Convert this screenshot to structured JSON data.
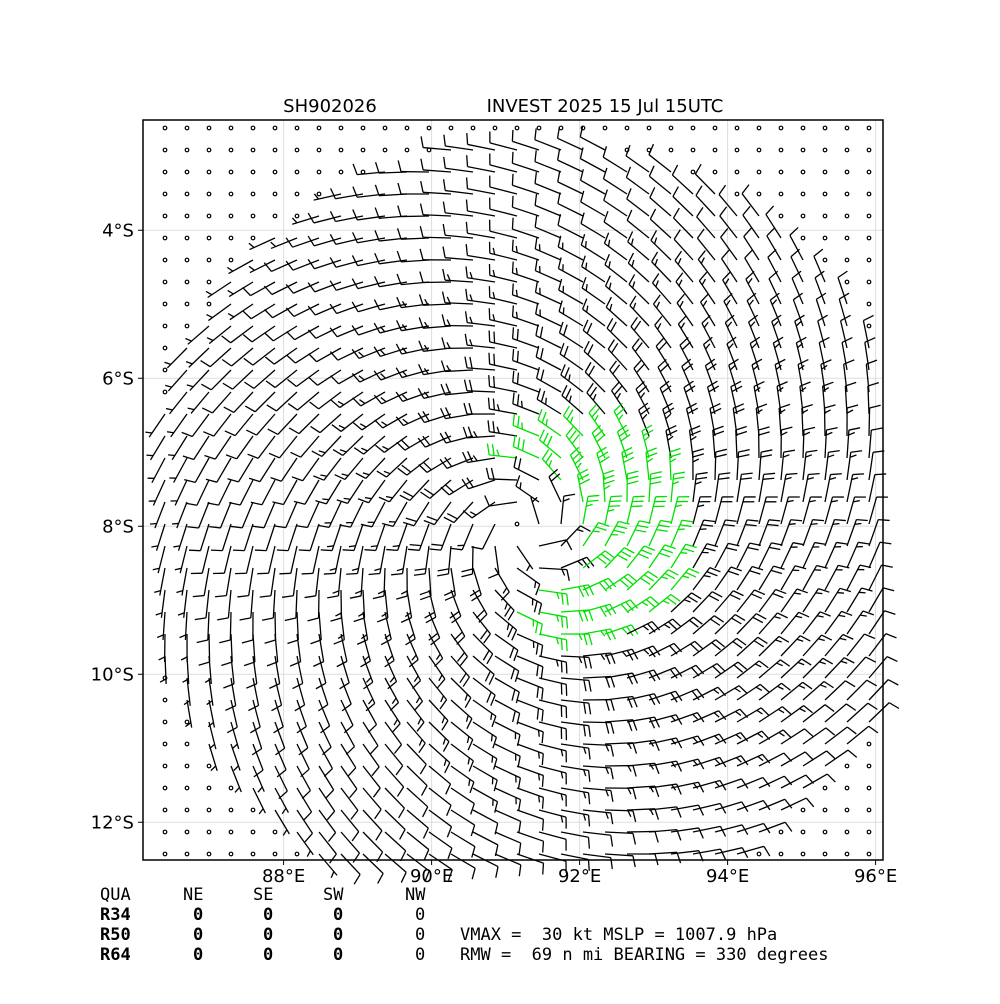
{
  "chart_data": {
    "type": "barbs",
    "title_left": "SH902026",
    "title_right": "INVEST 2025 15 Jul 15UTC",
    "xlim": [
      86.1,
      96.1
    ],
    "ylim": [
      -12.51,
      -2.51
    ],
    "xticks": [
      {
        "value": 88,
        "label": "88°E"
      },
      {
        "value": 90,
        "label": "90°E"
      },
      {
        "value": 92,
        "label": "92°E"
      },
      {
        "value": 94,
        "label": "94°E"
      },
      {
        "value": 96,
        "label": "96°E"
      }
    ],
    "yticks": [
      {
        "value": -4,
        "label": "4°S"
      },
      {
        "value": -6,
        "label": "6°S"
      },
      {
        "value": -8,
        "label": "8°S"
      },
      {
        "value": -10,
        "label": "10°S"
      },
      {
        "value": -12,
        "label": "12°S"
      }
    ],
    "grid": true
  },
  "storm_table": {
    "header": [
      "QUA",
      "NE",
      "SE",
      "SW",
      "NW"
    ],
    "rows": [
      {
        "label": "R34",
        "values": [
          "0",
          "0",
          "0",
          "0"
        ]
      },
      {
        "label": "R50",
        "values": [
          "0",
          "0",
          "0",
          "0"
        ]
      },
      {
        "label": "R64",
        "values": [
          "0",
          "0",
          "0",
          "0"
        ]
      }
    ]
  },
  "info": [
    "VMAX =  30 kt MSLP = 1007.9 hPa",
    "RMW =  69 n mi BEARING = 330 degrees"
  ]
}
